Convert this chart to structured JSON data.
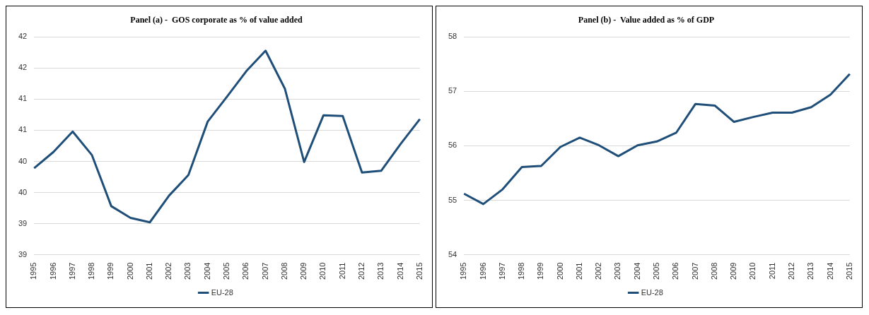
{
  "chart_data": [
    {
      "type": "line",
      "title": "Panel (a) -  GOS corporate as % of value added",
      "categories": [
        "1995",
        "1996",
        "1997",
        "1998",
        "1999",
        "2000",
        "2001",
        "2002",
        "2003",
        "2004",
        "2005",
        "2006",
        "2007",
        "2008",
        "2009",
        "2010",
        "2011",
        "2012",
        "2013",
        "2014",
        "2015"
      ],
      "series": [
        {
          "name": "EU-28",
          "color": "#1f4e79",
          "values": [
            39.89,
            40.15,
            40.48,
            40.1,
            39.28,
            39.09,
            39.02,
            39.45,
            39.78,
            40.64,
            41.04,
            41.45,
            41.78,
            41.17,
            39.99,
            40.74,
            40.73,
            39.82,
            39.85,
            40.28,
            40.68
          ]
        }
      ],
      "ylim": [
        38.5,
        42
      ],
      "yticks": [
        {
          "value": 38.5,
          "label": "39"
        },
        {
          "value": 39,
          "label": "39"
        },
        {
          "value": 39.5,
          "label": "40"
        },
        {
          "value": 40,
          "label": "40"
        },
        {
          "value": 40.5,
          "label": "41"
        },
        {
          "value": 41,
          "label": "41"
        },
        {
          "value": 41.5,
          "label": "42"
        },
        {
          "value": 42,
          "label": "42"
        }
      ],
      "grid": "y",
      "legend": "bottom",
      "marker": "none",
      "line_style": "solid"
    },
    {
      "type": "line",
      "title": "Panel (b) -  Value added as % of GDP",
      "categories": [
        "1995",
        "1996",
        "1997",
        "1998",
        "1999",
        "2000",
        "2001",
        "2002",
        "2003",
        "2004",
        "2005",
        "2006",
        "2007",
        "2008",
        "2009",
        "2010",
        "2011",
        "2012",
        "2013",
        "2014",
        "2015"
      ],
      "series": [
        {
          "name": "EU-28",
          "color": "#1f4e79",
          "values": [
            55.12,
            54.93,
            55.2,
            55.61,
            55.63,
            55.98,
            56.15,
            56.01,
            55.81,
            56.01,
            56.08,
            56.24,
            56.77,
            56.74,
            56.44,
            56.53,
            56.61,
            56.61,
            56.71,
            56.94,
            57.32
          ]
        }
      ],
      "ylim": [
        54,
        58
      ],
      "yticks": [
        54,
        55,
        56,
        57,
        58
      ],
      "grid": "y",
      "legend": "bottom",
      "marker": "none",
      "line_style": "solid"
    }
  ]
}
